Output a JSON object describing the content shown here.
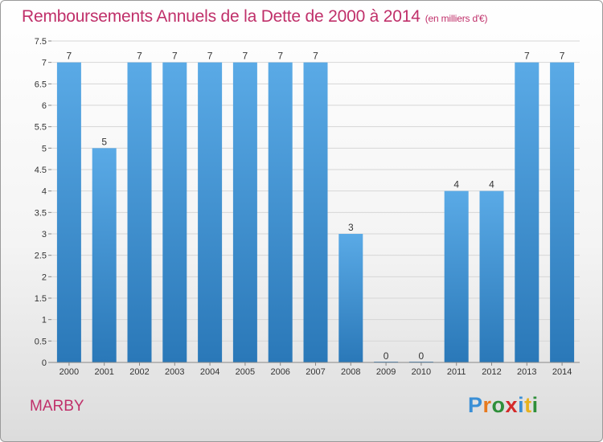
{
  "header": {
    "title": "Remboursements Annuels de la Dette de 2000 à 2014",
    "unit": "(en milliers d'€)"
  },
  "footer": {
    "place": "MARBY",
    "brand_letters": [
      "P",
      "r",
      "o",
      "x",
      "i",
      "t",
      "i"
    ],
    "brand_colors": [
      "#3a8fd6",
      "#e87a1e",
      "#2f8f3a",
      "#d42a2a",
      "#3a8fd6",
      "#e8b21e",
      "#2f8f3a"
    ]
  },
  "chart_data": {
    "type": "bar",
    "title": "Remboursements Annuels de la Dette de 2000 à 2014",
    "subtitle": "(en milliers d'€)",
    "categories": [
      "2000",
      "2001",
      "2002",
      "2003",
      "2004",
      "2005",
      "2006",
      "2007",
      "2008",
      "2009",
      "2010",
      "2011",
      "2012",
      "2013",
      "2014"
    ],
    "values": [
      7,
      5,
      7,
      7,
      7,
      7,
      7,
      7,
      3,
      0,
      0,
      4,
      4,
      7,
      7
    ],
    "data_labels": [
      "7",
      "5",
      "7",
      "7",
      "7",
      "7",
      "7",
      "7",
      "3",
      "0",
      "0",
      "4",
      "4",
      "7",
      "7"
    ],
    "ylim": [
      0,
      7.5
    ],
    "yticks": [
      0,
      0.5,
      1,
      1.5,
      2,
      2.5,
      3,
      3.5,
      4,
      4.5,
      5,
      5.5,
      6,
      6.5,
      7,
      7.5
    ],
    "ytick_labels": [
      "0",
      "0.5",
      "1",
      "1.5",
      "2",
      "2.5",
      "3",
      "3.5",
      "4",
      "4.5",
      "5",
      "5.5",
      "6",
      "6.5",
      "7",
      "7.5"
    ],
    "grid": true,
    "bar_color_top": "#5aaae6",
    "bar_color_bottom": "#2a78b8"
  }
}
